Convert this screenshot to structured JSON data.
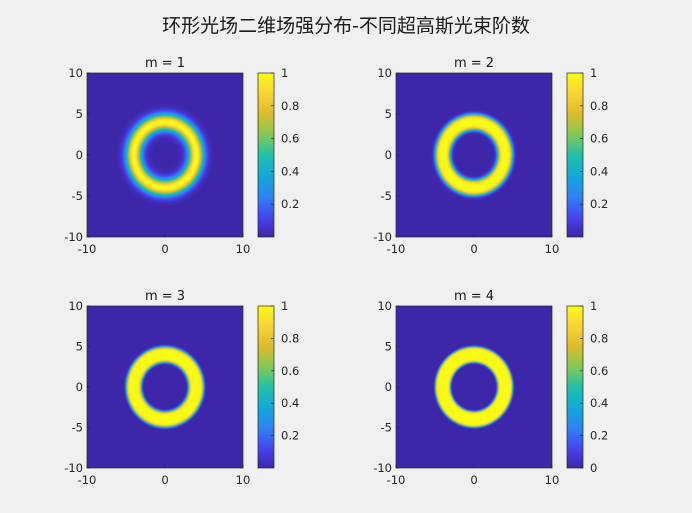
{
  "figure": {
    "title": "环形光场二维场强分布-不同超高斯光束阶数"
  },
  "colormap": {
    "name": "parula",
    "stops": [
      "#3e26a8",
      "#4745f4",
      "#2f84f0",
      "#11a9d8",
      "#22c0aa",
      "#84c955",
      "#dbbc2b",
      "#fcd337",
      "#f9fb15"
    ]
  },
  "chart_data": [
    {
      "type": "heatmap",
      "title": "m = 1",
      "order": 1,
      "ring_radius": 4,
      "ring_width": 1,
      "xlim": [
        -10,
        10
      ],
      "ylim": [
        -10,
        10
      ],
      "xticks": [
        -10,
        0,
        10
      ],
      "yticks": [
        -10,
        -5,
        0,
        5,
        10
      ],
      "colorbar": {
        "ticks": [
          "0.2",
          "0.4",
          "0.6",
          "0.8",
          "1"
        ],
        "values": [
          0.2,
          0.4,
          0.6,
          0.8,
          1
        ],
        "range": [
          0,
          1
        ]
      }
    },
    {
      "type": "heatmap",
      "title": "m = 2",
      "order": 2,
      "ring_radius": 4,
      "ring_width": 1,
      "xlim": [
        -10,
        10
      ],
      "ylim": [
        -10,
        10
      ],
      "xticks": [
        -10,
        0,
        10
      ],
      "yticks": [
        -10,
        -5,
        0,
        5,
        10
      ],
      "colorbar": {
        "ticks": [
          "0.2",
          "0.4",
          "0.6",
          "0.8",
          "1"
        ],
        "values": [
          0.2,
          0.4,
          0.6,
          0.8,
          1
        ],
        "range": [
          0,
          1
        ]
      }
    },
    {
      "type": "heatmap",
      "title": "m = 3",
      "order": 3,
      "ring_radius": 4,
      "ring_width": 1,
      "xlim": [
        -10,
        10
      ],
      "ylim": [
        -10,
        10
      ],
      "xticks": [
        -10,
        0,
        10
      ],
      "yticks": [
        -10,
        -5,
        0,
        5,
        10
      ],
      "colorbar": {
        "ticks": [
          "0.2",
          "0.4",
          "0.6",
          "0.8",
          "1"
        ],
        "values": [
          0.2,
          0.4,
          0.6,
          0.8,
          1
        ],
        "range": [
          0,
          1
        ]
      }
    },
    {
      "type": "heatmap",
      "title": "m = 4",
      "order": 4,
      "ring_radius": 4,
      "ring_width": 1,
      "xlim": [
        -10,
        10
      ],
      "ylim": [
        -10,
        10
      ],
      "xticks": [
        -10,
        0,
        10
      ],
      "yticks": [
        -10,
        -5,
        0,
        5,
        10
      ],
      "colorbar": {
        "ticks": [
          "0",
          "0.2",
          "0.4",
          "0.6",
          "0.8",
          "1"
        ],
        "values": [
          0,
          0.2,
          0.4,
          0.6,
          0.8,
          1
        ],
        "range": [
          0,
          1
        ]
      }
    }
  ]
}
